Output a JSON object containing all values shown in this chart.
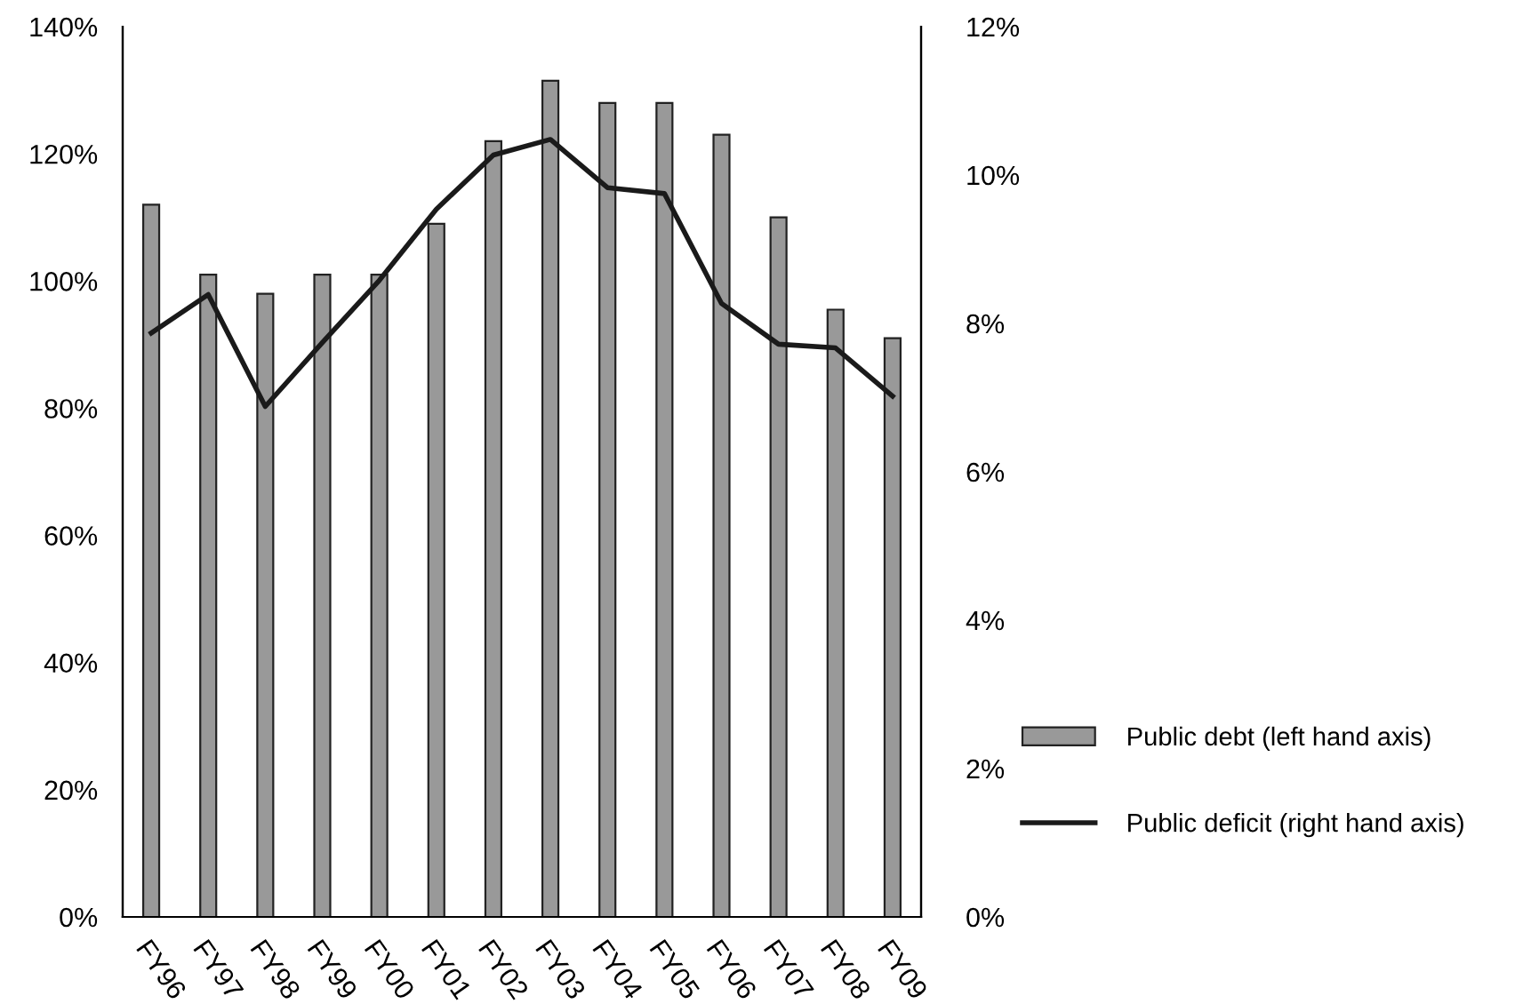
{
  "chart_data": {
    "type": "bar",
    "categories": [
      "FY96",
      "FY97",
      "FY98",
      "FY99",
      "FY00",
      "FY01",
      "FY02",
      "FY03",
      "FY04",
      "FY05",
      "FY06",
      "FY07",
      "FY08",
      "FY09"
    ],
    "series": [
      {
        "name": "Public debt (left hand axis)",
        "color": "#999999",
        "values": [
          112,
          101,
          98,
          101,
          101,
          109,
          122,
          131.5,
          128,
          128,
          123,
          110,
          95.5,
          91
        ]
      },
      {
        "name": "Public deficit (right hand axis)",
        "type": "line",
        "axis": "y2",
        "color": "#1a1a1a",
        "values": [
          7.87,
          8.39,
          6.88,
          7.74,
          8.58,
          9.54,
          10.27,
          10.48,
          9.83,
          9.75,
          8.27,
          7.72,
          7.67,
          7.02
        ]
      }
    ],
    "ylim": [
      0,
      140
    ],
    "yticks": [
      {
        "value": 0,
        "label": "0%"
      },
      {
        "value": 20,
        "label": "20%"
      },
      {
        "value": 40,
        "label": "40%"
      },
      {
        "value": 60,
        "label": "60%"
      },
      {
        "value": 80,
        "label": "80%"
      },
      {
        "value": 100,
        "label": "100%"
      },
      {
        "value": 120,
        "label": "120%"
      },
      {
        "value": 140,
        "label": "140%"
      }
    ],
    "y2lim": [
      0,
      12
    ],
    "y2ticks": [
      {
        "value": 0,
        "label": "0%"
      },
      {
        "value": 2,
        "label": "2%"
      },
      {
        "value": 4,
        "label": "4%"
      },
      {
        "value": 6,
        "label": "6%"
      },
      {
        "value": 8,
        "label": "8%"
      },
      {
        "value": 10,
        "label": "10%"
      },
      {
        "value": 12,
        "label": "12%"
      }
    ],
    "legend": "right",
    "grid": false,
    "line_style": "solid",
    "marker": "none"
  }
}
